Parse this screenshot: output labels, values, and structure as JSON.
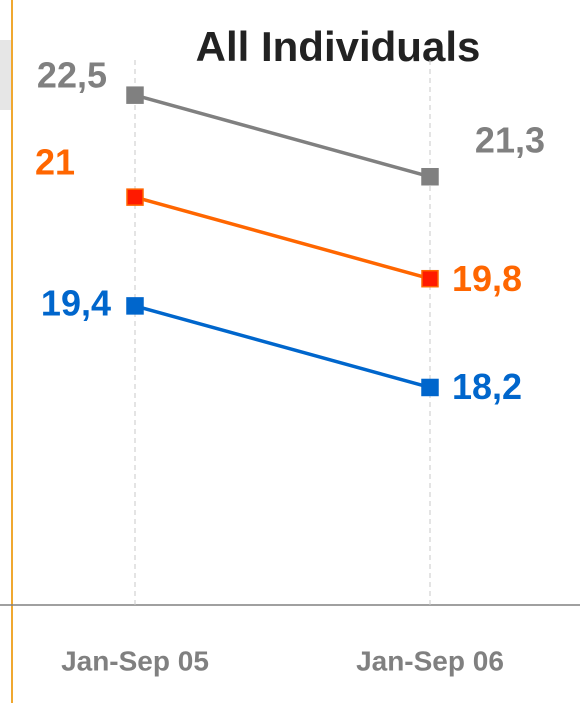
{
  "chart_data": {
    "type": "line",
    "title": "All Individuals",
    "categories": [
      "Jan-Sep 05",
      "Jan-Sep 06"
    ],
    "series": [
      {
        "color": "#808080",
        "marker_color": "#808080",
        "values": [
          22.5,
          21.3
        ],
        "value_labels": [
          "22,5",
          "21,3"
        ]
      },
      {
        "color": "#ff6600",
        "marker_color": "#ff1a00",
        "values": [
          21,
          19.8
        ],
        "value_labels": [
          "21",
          "19,8"
        ]
      },
      {
        "color": "#0066cc",
        "marker_color": "#0066cc",
        "values": [
          19.4,
          18.2
        ],
        "value_labels": [
          "19,4",
          "18,2"
        ]
      }
    ],
    "ylim": [
      15,
      23.9
    ]
  }
}
